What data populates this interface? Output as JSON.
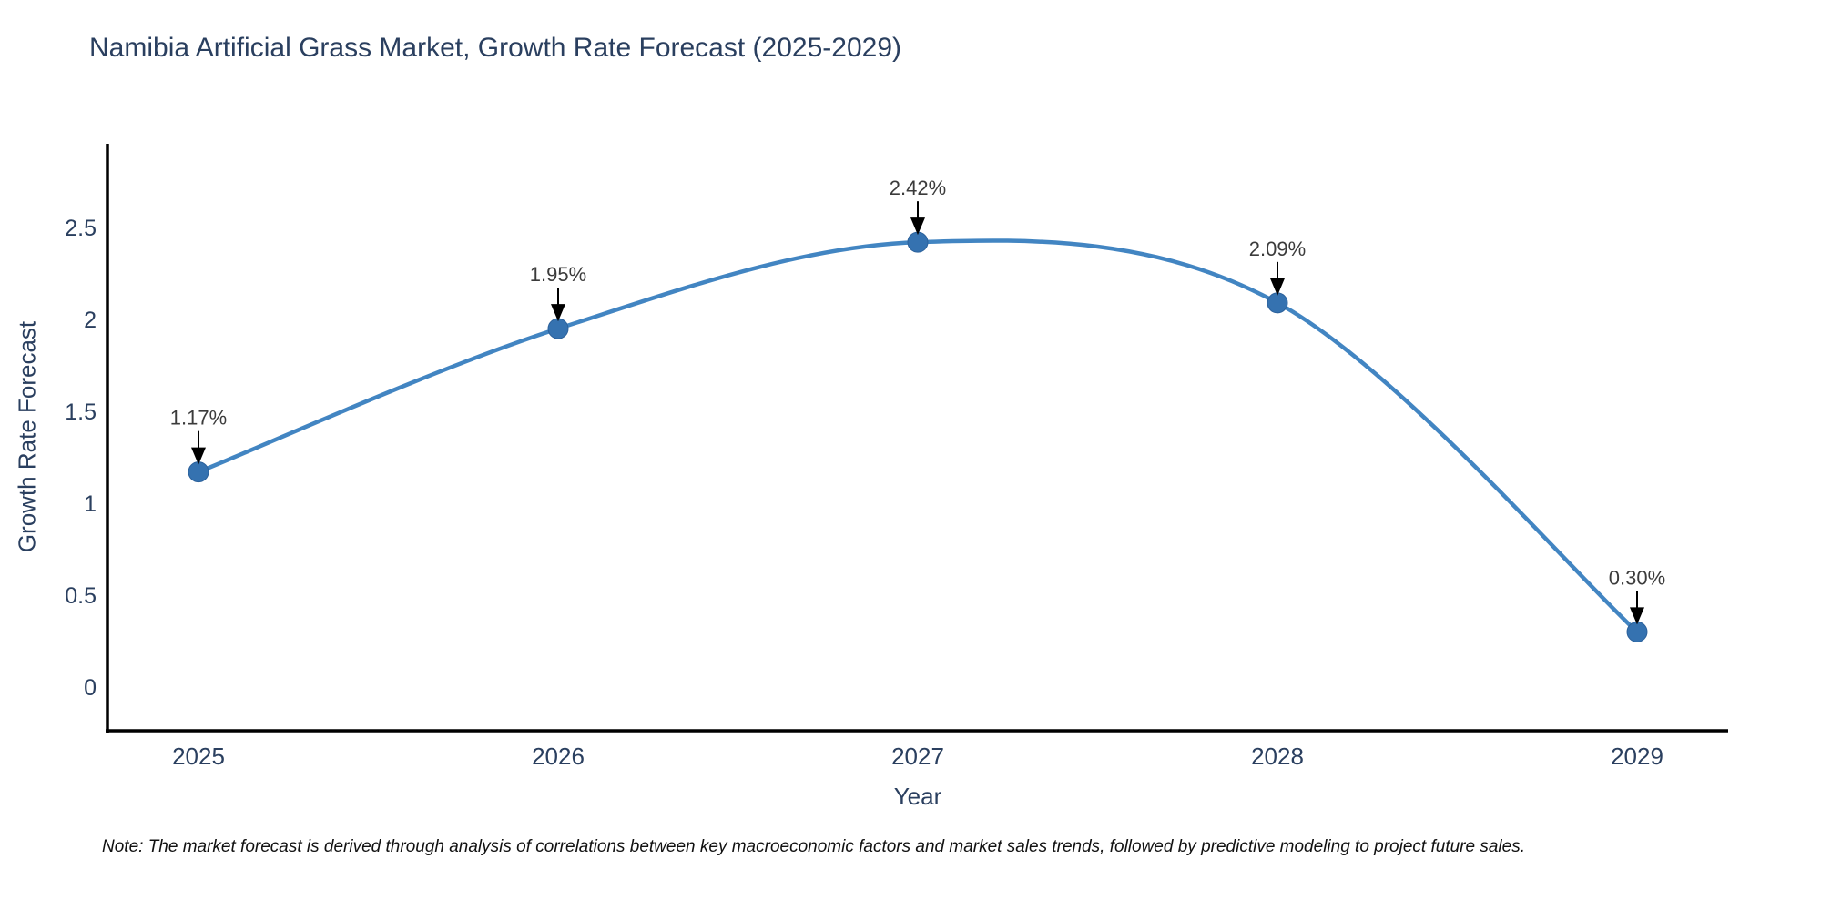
{
  "note": "Note: The market forecast is derived through analysis of correlations between key macroeconomic factors and market sales trends, followed by predictive modeling to project future sales.",
  "chart_data": {
    "type": "line",
    "title": "Namibia Artificial Grass Market, Growth Rate Forecast (2025-2029)",
    "xlabel": "Year",
    "ylabel": "Growth Rate Forecast",
    "x": [
      "2025",
      "2026",
      "2027",
      "2028",
      "2029"
    ],
    "values": [
      1.17,
      1.95,
      2.42,
      2.09,
      0.3
    ],
    "point_labels": [
      "1.17%",
      "1.95%",
      "2.42%",
      "2.09%",
      "0.30%"
    ],
    "yticks": [
      "0",
      "0.5",
      "1",
      "1.5",
      "2",
      "2.5"
    ],
    "ytick_values": [
      0,
      0.5,
      1,
      1.5,
      2,
      2.5
    ],
    "ylim": [
      -0.25,
      2.95
    ],
    "line_shape": "spline",
    "grid": false,
    "legend": "none",
    "annotations_have_arrows": true,
    "colors": {
      "line": "#4285c2",
      "marker": "#3572b0",
      "marker_edge": "#2c619b",
      "axis_line": "#000000",
      "tick_label": "#2a3f5f",
      "title": "#2a3f5f",
      "annotation_text": "#3b3b3b",
      "arrow": "#000000",
      "background": "#ffffff"
    }
  }
}
